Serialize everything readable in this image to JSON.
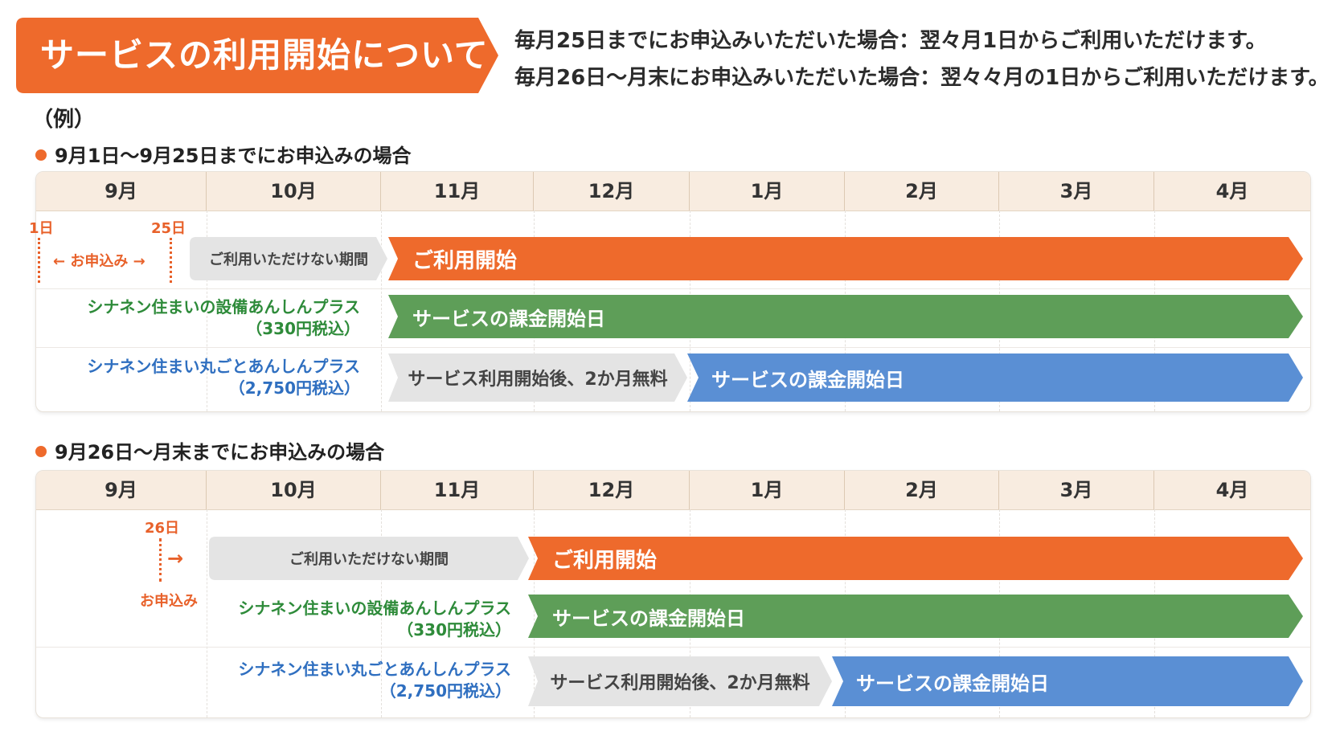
{
  "colors": {
    "orange": "#ee6a2c",
    "green": "#5e9e58",
    "blue": "#5a8fd4",
    "grey_bar": "#e4e4e4",
    "header_bg": "#f8ece0"
  },
  "title": "サービスの利用開始について",
  "rules": [
    "毎月25日までにお申込みいただいた場合：翌々月1日からご利用いただけます。",
    "毎月26日～月末にお申込みいただいた場合：翌々々月の1日からご利用いただけます。"
  ],
  "example_label": "（例）",
  "months": [
    "9月",
    "10月",
    "11月",
    "12月",
    "1月",
    "2月",
    "3月",
    "4月"
  ],
  "case1": {
    "heading": "9月1日～9月25日までにお申込みの場合",
    "marker_start": "1日",
    "marker_end": "25日",
    "apply_label": "← お申込み →",
    "unavailable": "ご利用いただけない期間",
    "start": "ご利用開始",
    "plan_setsubi": {
      "name": "シナネン住まいの設備あんしんプラス",
      "price": "（330円税込）",
      "bar": "サービスの課金開始日"
    },
    "plan_marugoto": {
      "name": "シナネン住まい丸ごとあんしんプラス",
      "price": "（2,750円税込）",
      "free": "サービス利用開始後、2か月無料",
      "bar": "サービスの課金開始日"
    }
  },
  "case2": {
    "heading": "9月26日～月末までにお申込みの場合",
    "marker": "26日",
    "apply_label": "お申込み",
    "arrow": "→",
    "unavailable": "ご利用いただけない期間",
    "start": "ご利用開始",
    "plan_setsubi": {
      "name": "シナネン住まいの設備あんしんプラス",
      "price": "（330円税込）",
      "bar": "サービスの課金開始日"
    },
    "plan_marugoto": {
      "name": "シナネン住まい丸ごとあんしんプラス",
      "price": "（2,750円税込）",
      "free": "サービス利用開始後、2か月無料",
      "bar": "サービスの課金開始日"
    }
  }
}
